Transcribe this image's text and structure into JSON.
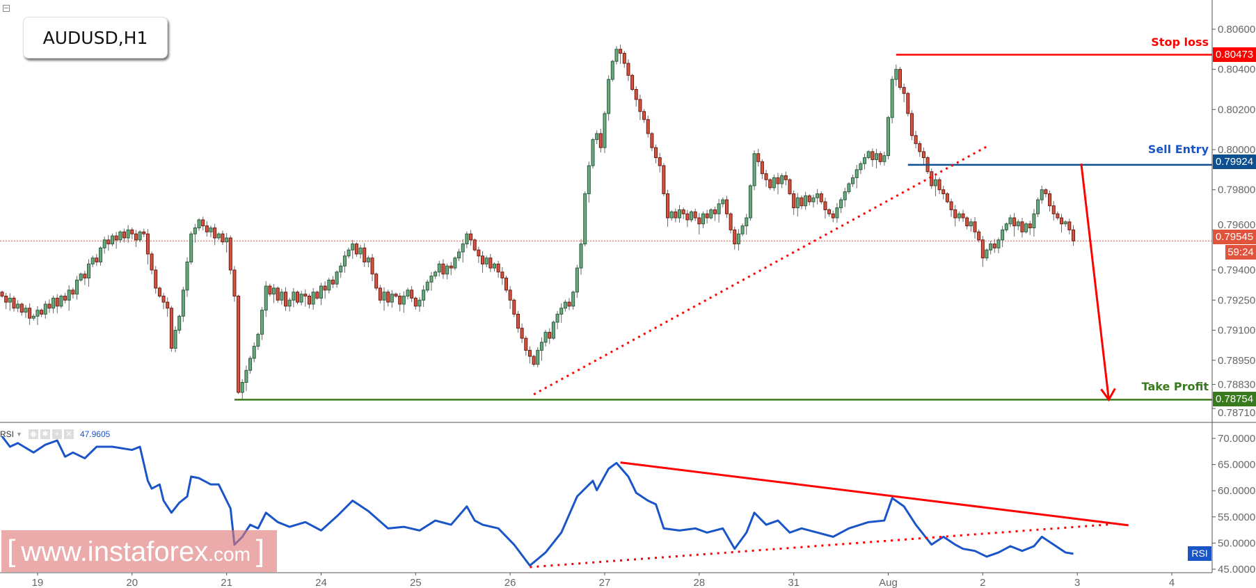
{
  "header": {
    "symbol_title": "AUDUSD,H1"
  },
  "watermark": {
    "open": "[",
    "site": "www.instaforex",
    "tld": ".com",
    "close": "]"
  },
  "colors": {
    "bull": "#6aaa80",
    "bull_border": "#2b5a3a",
    "bear": "#d6533f",
    "bear_border": "#6b1a10",
    "stop": "#ff0000",
    "entry": "#0d4f8f",
    "take_profit": "#3a7a1e",
    "current": "#e0533d",
    "rsi": "#1a55c8",
    "annotation": "#ff0000"
  },
  "levels": {
    "stop_loss": {
      "label": "Stop loss",
      "price": "0.80473",
      "value": 0.80473
    },
    "sell_entry": {
      "label": "Sell Entry",
      "price": "0.79924",
      "value": 0.79924
    },
    "take_profit": {
      "label": "Take Profit",
      "price": "0.78754",
      "value": 0.78754
    },
    "current": {
      "price": "0.79545",
      "value": 0.79545,
      "countdown": "59:24"
    }
  },
  "rsi_panel": {
    "name": "RSI",
    "value": "47.9605",
    "badge": "RSI"
  },
  "chart_data": [
    {
      "type": "candlestick",
      "timeframe": "H1",
      "ylim": [
        0.7866,
        0.8066
      ],
      "y_ticks": [
        "0.80600",
        "0.80400",
        "0.80200",
        "0.80000",
        "0.79800",
        "0.79600",
        "0.79400",
        "0.79250",
        "0.79100",
        "0.78950",
        "0.78830",
        "0.78710"
      ],
      "x_ticks": [
        {
          "label": "19",
          "bar": 9
        },
        {
          "label": "20",
          "bar": 33
        },
        {
          "label": "21",
          "bar": 57
        },
        {
          "label": "24",
          "bar": 81
        },
        {
          "label": "25",
          "bar": 105
        },
        {
          "label": "26",
          "bar": 129
        },
        {
          "label": "27",
          "bar": 153
        },
        {
          "label": "28",
          "bar": 177
        },
        {
          "label": "31",
          "bar": 201
        },
        {
          "label": "Aug",
          "bar": 225
        },
        {
          "label": "2",
          "bar": 249
        },
        {
          "label": "3",
          "bar": 273
        },
        {
          "label": "4",
          "bar": 297
        }
      ],
      "first_open": 0.7929,
      "closes": [
        0.7927,
        0.7924,
        0.7926,
        0.7921,
        0.7923,
        0.7919,
        0.7921,
        0.7916,
        0.7917,
        0.792,
        0.7918,
        0.7923,
        0.7921,
        0.7926,
        0.7922,
        0.7927,
        0.7925,
        0.793,
        0.7928,
        0.7935,
        0.7938,
        0.7936,
        0.7943,
        0.7946,
        0.7944,
        0.7951,
        0.7955,
        0.7953,
        0.7957,
        0.7955,
        0.7959,
        0.7956,
        0.796,
        0.7958,
        0.7955,
        0.7959,
        0.7958,
        0.7948,
        0.794,
        0.7931,
        0.7927,
        0.7924,
        0.7921,
        0.7901,
        0.791,
        0.7917,
        0.793,
        0.7944,
        0.7958,
        0.7961,
        0.7965,
        0.7962,
        0.7959,
        0.7961,
        0.7956,
        0.7958,
        0.7954,
        0.7956,
        0.794,
        0.7927,
        0.7879,
        0.7884,
        0.789,
        0.7896,
        0.7902,
        0.7908,
        0.792,
        0.7932,
        0.7928,
        0.7931,
        0.7925,
        0.7929,
        0.7922,
        0.7925,
        0.7929,
        0.7924,
        0.7928,
        0.7927,
        0.7923,
        0.7929,
        0.7926,
        0.7932,
        0.793,
        0.7935,
        0.7933,
        0.7939,
        0.7942,
        0.7947,
        0.795,
        0.7953,
        0.7948,
        0.7951,
        0.7944,
        0.7946,
        0.7938,
        0.7931,
        0.7925,
        0.7929,
        0.7924,
        0.7928,
        0.7927,
        0.7923,
        0.7927,
        0.793,
        0.7926,
        0.7922,
        0.7925,
        0.793,
        0.7934,
        0.7937,
        0.7939,
        0.7943,
        0.7938,
        0.7942,
        0.7941,
        0.7946,
        0.7949,
        0.7953,
        0.7958,
        0.7955,
        0.795,
        0.7947,
        0.7943,
        0.7946,
        0.7941,
        0.7943,
        0.7939,
        0.7936,
        0.793,
        0.7925,
        0.7918,
        0.7911,
        0.7906,
        0.79,
        0.7897,
        0.7893,
        0.79,
        0.7904,
        0.7909,
        0.7906,
        0.7914,
        0.7918,
        0.7921,
        0.7924,
        0.7922,
        0.7929,
        0.7941,
        0.7953,
        0.7978,
        0.7992,
        0.8005,
        0.8008,
        0.8001,
        0.8018,
        0.8035,
        0.8044,
        0.805,
        0.8048,
        0.8043,
        0.8037,
        0.803,
        0.8025,
        0.8019,
        0.8015,
        0.8008,
        0.8001,
        0.7996,
        0.7992,
        0.7978,
        0.7966,
        0.7969,
        0.7966,
        0.797,
        0.7968,
        0.7965,
        0.7969,
        0.7966,
        0.7963,
        0.7968,
        0.7966,
        0.797,
        0.7968,
        0.7973,
        0.7975,
        0.7968,
        0.796,
        0.7953,
        0.7958,
        0.7962,
        0.7966,
        0.7982,
        0.7998,
        0.7994,
        0.7988,
        0.7985,
        0.7981,
        0.7986,
        0.7983,
        0.7987,
        0.7985,
        0.7978,
        0.7971,
        0.7976,
        0.7972,
        0.7977,
        0.7974,
        0.7976,
        0.7978,
        0.7974,
        0.797,
        0.7968,
        0.7966,
        0.7971,
        0.7975,
        0.7979,
        0.7983,
        0.7986,
        0.799,
        0.7993,
        0.7996,
        0.7999,
        0.7995,
        0.7998,
        0.7994,
        0.7997,
        0.8016,
        0.8035,
        0.804,
        0.8031,
        0.8028,
        0.8018,
        0.8007,
        0.8003,
        0.7999,
        0.7996,
        0.7989,
        0.7982,
        0.7985,
        0.798,
        0.7978,
        0.7974,
        0.797,
        0.7966,
        0.7968,
        0.7966,
        0.7962,
        0.7964,
        0.7959,
        0.7955,
        0.7946,
        0.795,
        0.7953,
        0.7951,
        0.7955,
        0.796,
        0.7963,
        0.7966,
        0.7962,
        0.7964,
        0.7959,
        0.7963,
        0.7961,
        0.7968,
        0.7975,
        0.798,
        0.7978,
        0.7972,
        0.7968,
        0.7966,
        0.7963,
        0.7964,
        0.796,
        0.79545
      ],
      "annotations": {
        "support_trendline": {
          "style": "dotted",
          "from": {
            "bar": 135,
            "price": 0.7878
          },
          "to": {
            "bar": 250,
            "price": 0.80015
          }
        },
        "stop_line_from_bar": 227,
        "entry_line_from_bar": 230,
        "take_profit_line_from_bar": 59,
        "target_arrow": {
          "from": {
            "bar": 274,
            "price": 0.7993
          },
          "to": {
            "bar": 281,
            "price": 0.78754
          }
        }
      }
    },
    {
      "type": "line",
      "name": "RSI",
      "ylim": [
        44,
        72
      ],
      "y_ticks": [
        "70.0000",
        "65.0000",
        "60.0000",
        "55.0000",
        "50.0000",
        "45.0000"
      ],
      "points": [
        [
          0,
          70.4
        ],
        [
          2,
          68.4
        ],
        [
          4,
          69.1
        ],
        [
          8,
          67.3
        ],
        [
          11,
          68.8
        ],
        [
          14,
          69.6
        ],
        [
          16,
          66.5
        ],
        [
          18,
          67.3
        ],
        [
          21,
          66.2
        ],
        [
          24,
          68.4
        ],
        [
          28,
          68.4
        ],
        [
          33,
          67.8
        ],
        [
          35,
          68.4
        ],
        [
          37,
          61.9
        ],
        [
          38,
          60.4
        ],
        [
          40,
          61.2
        ],
        [
          41,
          58.1
        ],
        [
          43,
          55.8
        ],
        [
          45,
          57.7
        ],
        [
          47,
          58.9
        ],
        [
          48,
          62.7
        ],
        [
          50,
          62.4
        ],
        [
          53,
          61.2
        ],
        [
          55,
          61.2
        ],
        [
          58,
          56.6
        ],
        [
          59,
          49.7
        ],
        [
          61,
          51.2
        ],
        [
          63,
          53.5
        ],
        [
          65,
          52.8
        ],
        [
          67,
          55.8
        ],
        [
          70,
          54.0
        ],
        [
          73,
          53.1
        ],
        [
          77,
          54.0
        ],
        [
          81,
          52.4
        ],
        [
          85,
          55.1
        ],
        [
          89,
          58.1
        ],
        [
          93,
          56.1
        ],
        [
          98,
          52.8
        ],
        [
          102,
          53.1
        ],
        [
          106,
          52.4
        ],
        [
          110,
          54.3
        ],
        [
          114,
          53.5
        ],
        [
          118,
          57.0
        ],
        [
          120,
          54.3
        ],
        [
          122,
          53.5
        ],
        [
          126,
          52.8
        ],
        [
          130,
          49.7
        ],
        [
          134,
          45.7
        ],
        [
          138,
          48.2
        ],
        [
          142,
          52.0
        ],
        [
          146,
          58.9
        ],
        [
          150,
          61.9
        ],
        [
          151,
          60.1
        ],
        [
          154,
          64.2
        ],
        [
          156,
          65.3
        ],
        [
          159,
          62.7
        ],
        [
          161,
          59.6
        ],
        [
          164,
          58.1
        ],
        [
          166,
          57.4
        ],
        [
          168,
          52.8
        ],
        [
          172,
          52.4
        ],
        [
          176,
          52.8
        ],
        [
          179,
          52.0
        ],
        [
          183,
          52.8
        ],
        [
          186,
          48.9
        ],
        [
          189,
          52.0
        ],
        [
          191,
          55.8
        ],
        [
          194,
          53.5
        ],
        [
          197,
          54.3
        ],
        [
          200,
          52.0
        ],
        [
          203,
          52.8
        ],
        [
          207,
          52.0
        ],
        [
          211,
          51.2
        ],
        [
          215,
          52.8
        ],
        [
          220,
          54.0
        ],
        [
          224,
          54.3
        ],
        [
          226,
          58.6
        ],
        [
          229,
          57.0
        ],
        [
          232,
          53.5
        ],
        [
          236,
          49.7
        ],
        [
          239,
          51.2
        ],
        [
          242,
          49.7
        ],
        [
          244,
          48.9
        ],
        [
          247,
          48.5
        ],
        [
          250,
          47.4
        ],
        [
          253,
          48.2
        ],
        [
          256,
          49.4
        ],
        [
          259,
          48.5
        ],
        [
          262,
          49.4
        ],
        [
          264,
          51.2
        ],
        [
          267,
          49.7
        ],
        [
          270,
          48.2
        ],
        [
          272,
          47.96
        ]
      ],
      "annotations": {
        "resistance_trendline": {
          "style": "solid",
          "from": {
            "bar": 157,
            "value": 65.4
          },
          "to": {
            "bar": 286,
            "value": 53.4
          }
        },
        "support_trendline": {
          "style": "dotted",
          "from": {
            "bar": 134,
            "value": 45.4
          },
          "to": {
            "bar": 282,
            "value": 53.6
          }
        }
      }
    }
  ]
}
